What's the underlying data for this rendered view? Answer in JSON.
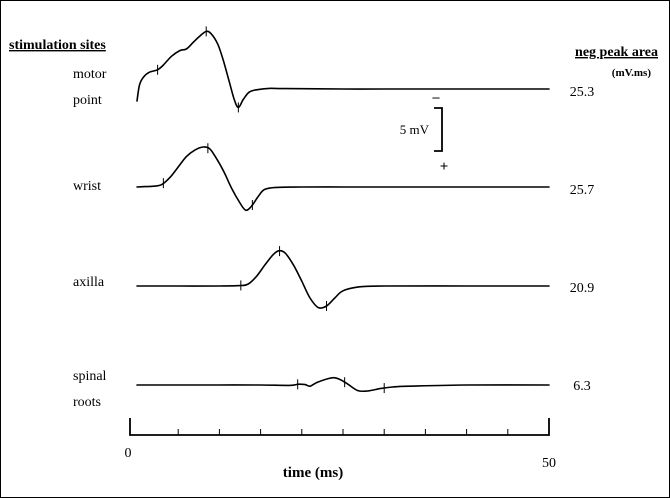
{
  "chart_data": {
    "type": "line",
    "title": "",
    "xlabel": "time (ms)",
    "ylabel": "",
    "xlim": [
      0,
      50
    ],
    "x_tick_labels": [
      "0",
      "50"
    ],
    "left_header": "stimulation sites",
    "right_header": "neg peak area",
    "right_header_unit": "(mV.ms)",
    "scale_bar": {
      "label": "5 mV",
      "plus": "+",
      "minus": "–"
    },
    "series": [
      {
        "name_lines": [
          "motor",
          "point"
        ],
        "area": "25.3",
        "points": [
          [
            0,
            -1.5
          ],
          [
            0.3,
            0.5
          ],
          [
            0.8,
            1.5
          ],
          [
            1.5,
            2.1
          ],
          [
            2.5,
            2.4
          ],
          [
            3.2,
            3.0
          ],
          [
            4.2,
            4.1
          ],
          [
            5.2,
            4.8
          ],
          [
            6.0,
            5.0
          ],
          [
            6.8,
            5.8
          ],
          [
            7.5,
            6.5
          ],
          [
            8.4,
            7.2
          ],
          [
            9.0,
            6.9
          ],
          [
            9.8,
            5.6
          ],
          [
            10.5,
            3.5
          ],
          [
            11.2,
            0.9
          ],
          [
            11.8,
            -1.3
          ],
          [
            12.3,
            -2.3
          ],
          [
            12.9,
            -1.3
          ],
          [
            13.6,
            -0.4
          ],
          [
            14.5,
            -0.1
          ],
          [
            16,
            0.08
          ],
          [
            18,
            0.05
          ],
          [
            25,
            0
          ],
          [
            30,
            0
          ],
          [
            40,
            0
          ],
          [
            50,
            0
          ]
        ],
        "marks": [
          2.5,
          8.4,
          12.3
        ]
      },
      {
        "name_lines": [
          "wrist"
        ],
        "area": "25.7",
        "points": [
          [
            0,
            0
          ],
          [
            1,
            0.05
          ],
          [
            2,
            0.1
          ],
          [
            3,
            0.3
          ],
          [
            4,
            1.2
          ],
          [
            5,
            2.5
          ],
          [
            6,
            3.8
          ],
          [
            7,
            4.6
          ],
          [
            8.0,
            5.0
          ],
          [
            8.8,
            4.8
          ],
          [
            9.5,
            3.8
          ],
          [
            10.5,
            2.0
          ],
          [
            11.5,
            -0.2
          ],
          [
            12.5,
            -2.0
          ],
          [
            13.2,
            -2.9
          ],
          [
            13.9,
            -2.4
          ],
          [
            14.7,
            -1.2
          ],
          [
            15.5,
            -0.3
          ],
          [
            17,
            -0.05
          ],
          [
            20,
            0
          ],
          [
            25,
            0
          ],
          [
            30,
            0
          ],
          [
            40,
            0
          ],
          [
            50,
            0
          ]
        ],
        "marks": [
          3.2,
          8.6,
          14.0
        ]
      },
      {
        "name_lines": [
          "axilla"
        ],
        "area": "20.9",
        "points": [
          [
            0,
            0
          ],
          [
            5,
            0
          ],
          [
            10,
            0
          ],
          [
            12.5,
            0.05
          ],
          [
            13.5,
            0.25
          ],
          [
            14.5,
            1.2
          ],
          [
            15.5,
            2.6
          ],
          [
            16.5,
            3.9
          ],
          [
            17.2,
            4.4
          ],
          [
            18.0,
            4.1
          ],
          [
            19,
            2.6
          ],
          [
            20,
            0.6
          ],
          [
            21,
            -1.5
          ],
          [
            22,
            -2.7
          ],
          [
            23,
            -2.5
          ],
          [
            24,
            -1.5
          ],
          [
            25,
            -0.6
          ],
          [
            27,
            -0.1
          ],
          [
            30,
            0
          ],
          [
            40,
            0
          ],
          [
            50,
            0
          ]
        ],
        "marks": [
          12.6,
          17.3,
          23.0
        ]
      },
      {
        "name_lines": [
          "spinal",
          "roots"
        ],
        "area": "6.3",
        "points": [
          [
            0,
            0
          ],
          [
            5,
            0
          ],
          [
            10,
            0
          ],
          [
            15,
            0
          ],
          [
            18.5,
            -0.05
          ],
          [
            19.6,
            0.1
          ],
          [
            20.4,
            0.05
          ],
          [
            21,
            -0.15
          ],
          [
            21.8,
            0.3
          ],
          [
            23.2,
            0.8
          ],
          [
            24,
            0.9
          ],
          [
            24.8,
            0.6
          ],
          [
            25.6,
            0.1
          ],
          [
            26.8,
            -0.7
          ],
          [
            28,
            -0.75
          ],
          [
            29.5,
            -0.45
          ],
          [
            31,
            -0.25
          ],
          [
            33,
            -0.15
          ],
          [
            40,
            0
          ],
          [
            50,
            0
          ]
        ],
        "marks": [
          19.5,
          25.2,
          30.0
        ]
      }
    ]
  }
}
